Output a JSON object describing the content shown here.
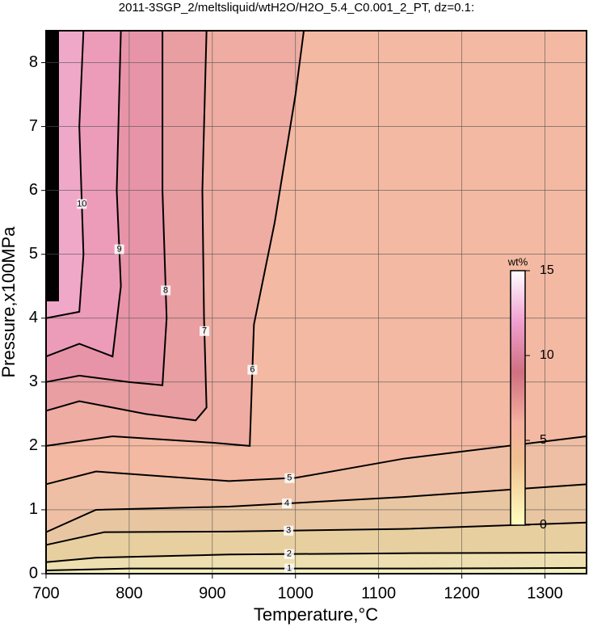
{
  "chart_data": {
    "type": "contour",
    "title": "2011-3SGP_2/meltsliquid/wtH2O/H2O_5.4_C0.001_2_PT, dz=0.1:",
    "x_label": "Temperature,°C",
    "y_label": "Pressure,x100MPa",
    "xlim": [
      700,
      1350
    ],
    "ylim": [
      0,
      8.5
    ],
    "xticks": [
      700,
      800,
      900,
      1000,
      1100,
      1200,
      1300
    ],
    "yticks": [
      0,
      1,
      2,
      3,
      4,
      5,
      6,
      7,
      8
    ],
    "grid": true,
    "base_color": "#f3efbf",
    "contours": [
      {
        "level": 1,
        "fill_color": "#eedfb0",
        "x": [
          700,
          800,
          920,
          1130,
          1350
        ],
        "y": [
          0.05,
          0.08,
          0.08,
          0.08,
          0.09
        ]
      },
      {
        "level": 2,
        "fill_color": "#e8cfa0",
        "x": [
          700,
          760,
          920,
          1130,
          1350
        ],
        "y": [
          0.18,
          0.25,
          0.3,
          0.32,
          0.33
        ]
      },
      {
        "level": 3,
        "fill_color": "#e9c6a2",
        "x": [
          700,
          770,
          920,
          1130,
          1350
        ],
        "y": [
          0.45,
          0.65,
          0.66,
          0.7,
          0.8
        ]
      },
      {
        "level": 4,
        "fill_color": "#eebfa4",
        "x": [
          700,
          760,
          920,
          1130,
          1350
        ],
        "y": [
          0.65,
          1.0,
          1.05,
          1.2,
          1.4
        ]
      },
      {
        "level": 5,
        "fill_color": "#f4b9a2",
        "x": [
          700,
          760,
          920,
          1000,
          1130,
          1350
        ],
        "y": [
          1.4,
          1.6,
          1.45,
          1.5,
          1.8,
          2.15
        ]
      },
      {
        "level": 6,
        "fill_color": "#eeaca2",
        "x": [
          700,
          780,
          900,
          945,
          950,
          975,
          1000,
          1010
        ],
        "y": [
          2.0,
          2.15,
          2.05,
          2.0,
          3.9,
          5.5,
          7.5,
          8.5
        ]
      },
      {
        "level": 7,
        "fill_color": "#e99ea2",
        "x": [
          700,
          740,
          820,
          880,
          893,
          890,
          888,
          893
        ],
        "y": [
          2.55,
          2.7,
          2.5,
          2.4,
          2.6,
          4,
          6,
          8.5
        ]
      },
      {
        "level": 8,
        "fill_color": "#e894a8",
        "x": [
          700,
          740,
          800,
          840,
          845,
          840,
          840
        ],
        "y": [
          3.0,
          3.1,
          3.0,
          2.95,
          4,
          6,
          8.5
        ]
      },
      {
        "level": 9,
        "fill_color": "#ec9cb8",
        "x": [
          700,
          740,
          780,
          790,
          785,
          790
        ],
        "y": [
          3.4,
          3.6,
          3.4,
          4.5,
          6,
          8.5
        ]
      },
      {
        "level": 10,
        "fill_color": "#f0a8c8",
        "x": [
          700,
          740,
          745,
          740,
          745
        ],
        "y": [
          4.0,
          4.1,
          5,
          7,
          8.5
        ]
      }
    ],
    "colorbar": {
      "label": "wt%",
      "lim": [
        0,
        15
      ],
      "ticks": [
        0,
        5,
        10,
        15
      ]
    }
  }
}
